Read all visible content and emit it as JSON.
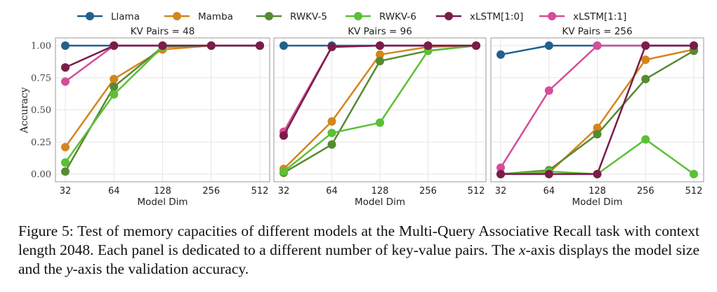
{
  "chart_data": {
    "type": "line",
    "legend": {
      "placement": "top-center",
      "entries": [
        "Llama",
        "Mamba",
        "RWKV-5",
        "RWKV-6",
        "xLSTM[1:0]",
        "xLSTM[1:1]"
      ]
    },
    "colors": {
      "Llama": "#21618c",
      "Mamba": "#d4861c",
      "RWKV-5": "#568a30",
      "RWKV-6": "#5cbf35",
      "xLSTM[1:0]": "#7b1c4a",
      "xLSTM[1:1]": "#d64d9a"
    },
    "ylabel": "Accuracy",
    "xlabel": "Model Dim",
    "x": [
      "32",
      "64",
      "128",
      "256",
      "512"
    ],
    "y_ticks": [
      "0.00",
      "0.25",
      "0.50",
      "0.75",
      "1.00"
    ],
    "ylim": [
      0,
      1
    ],
    "x_scale": "log2",
    "panels": [
      {
        "title": "KV Pairs = 48",
        "series": [
          {
            "name": "Llama",
            "values": [
              1.0,
              1.0,
              1.0,
              1.0,
              1.0
            ]
          },
          {
            "name": "Mamba",
            "values": [
              0.21,
              0.74,
              0.97,
              1.0,
              1.0
            ]
          },
          {
            "name": "RWKV-5",
            "values": [
              0.02,
              0.68,
              0.99,
              1.0,
              1.0
            ]
          },
          {
            "name": "RWKV-6",
            "values": [
              0.09,
              0.62,
              0.99,
              1.0,
              1.0
            ]
          },
          {
            "name": "xLSTM[1:0]",
            "values": [
              0.83,
              1.0,
              1.0,
              1.0,
              1.0
            ]
          },
          {
            "name": "xLSTM[1:1]",
            "values": [
              0.72,
              1.0,
              1.0,
              1.0,
              1.0
            ]
          }
        ]
      },
      {
        "title": "KV Pairs = 96",
        "series": [
          {
            "name": "Llama",
            "values": [
              1.0,
              1.0,
              1.0,
              1.0,
              1.0
            ]
          },
          {
            "name": "Mamba",
            "values": [
              0.04,
              0.41,
              0.93,
              0.99,
              1.0
            ]
          },
          {
            "name": "RWKV-5",
            "values": [
              0.01,
              0.23,
              0.88,
              0.96,
              1.0
            ]
          },
          {
            "name": "RWKV-6",
            "values": [
              0.02,
              0.32,
              0.4,
              0.96,
              1.0
            ]
          },
          {
            "name": "xLSTM[1:0]",
            "values": [
              0.3,
              0.99,
              1.0,
              1.0,
              1.0
            ]
          },
          {
            "name": "xLSTM[1:1]",
            "values": [
              0.33,
              0.99,
              1.0,
              1.0,
              1.0
            ]
          }
        ]
      },
      {
        "title": "KV Pairs = 256",
        "series": [
          {
            "name": "Llama",
            "values": [
              0.93,
              1.0,
              1.0,
              1.0,
              1.0
            ]
          },
          {
            "name": "Mamba",
            "values": [
              0.0,
              0.01,
              0.36,
              0.89,
              0.97
            ]
          },
          {
            "name": "RWKV-5",
            "values": [
              0.0,
              0.03,
              0.31,
              0.74,
              0.96
            ]
          },
          {
            "name": "RWKV-6",
            "values": [
              0.0,
              0.02,
              0.0,
              0.27,
              0.0
            ]
          },
          {
            "name": "xLSTM[1:0]",
            "values": [
              0.0,
              0.0,
              0.0,
              1.0,
              1.0
            ]
          },
          {
            "name": "xLSTM[1:1]",
            "values": [
              0.05,
              0.65,
              1.0,
              1.0,
              1.0
            ]
          }
        ]
      }
    ]
  },
  "caption": {
    "label": "Figure 5:",
    "text": " Test of memory capacities of different models at the Multi-Query Associative Recall task with context length 2048. Each panel is dedicated to a different number of key-value pairs. The ",
    "x_var": "x",
    "mid": "-axis displays the model size and the ",
    "y_var": "y",
    "end": "-axis the validation accuracy."
  }
}
